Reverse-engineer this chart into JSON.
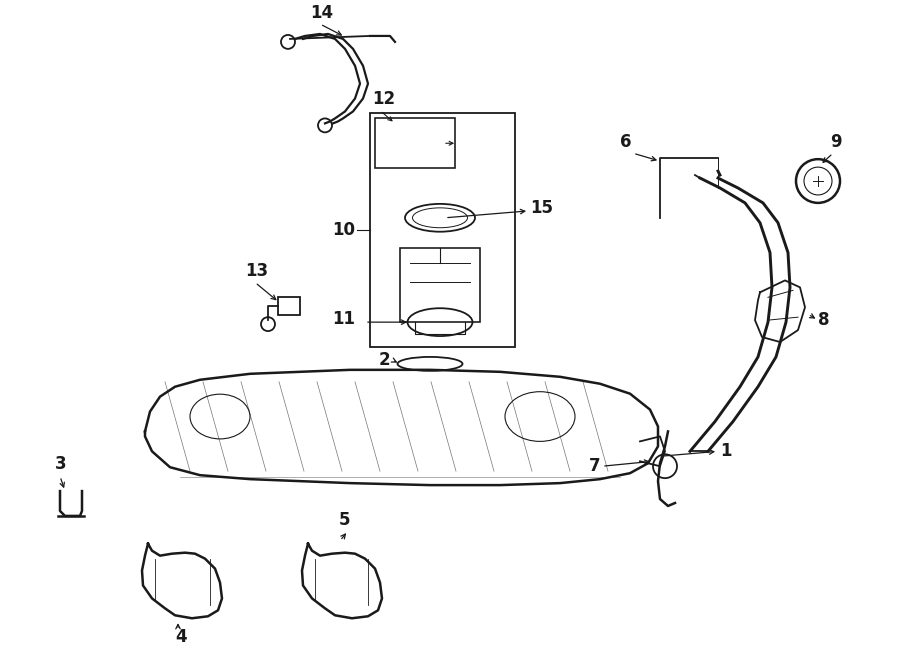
{
  "bg_color": "#ffffff",
  "line_color": "#1a1a1a",
  "figsize": [
    9.0,
    6.61
  ],
  "dpi": 100,
  "label_fontsize": 12,
  "lw": 1.3
}
